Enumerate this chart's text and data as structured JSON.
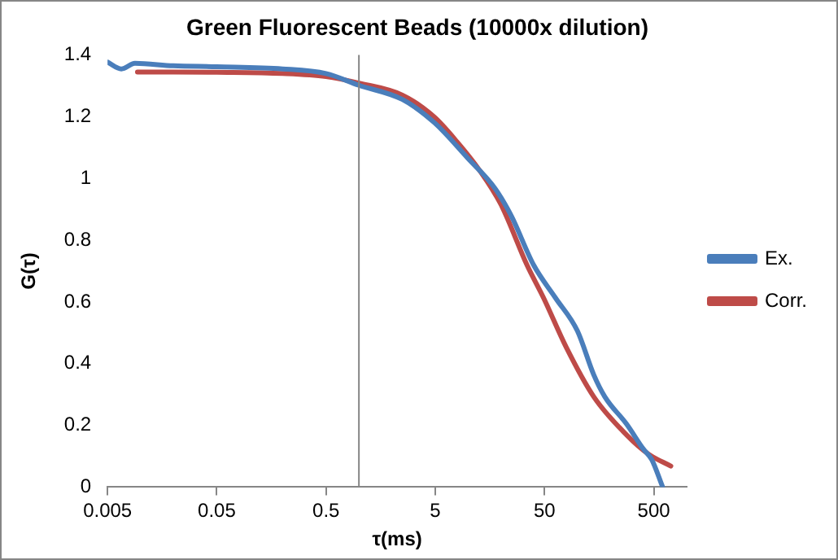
{
  "chart_data": {
    "type": "line",
    "title": "Green Fluorescent Beads (10000x dilution)",
    "xlabel": "τ(ms)",
    "ylabel": "G(τ)",
    "log": "x",
    "xlim": [
      0.005,
      1000
    ],
    "xticks": [
      0.005,
      0.05,
      0.5,
      5,
      50,
      500
    ],
    "ylim": [
      0,
      1.4
    ],
    "yticks": [
      0,
      0.2,
      0.4,
      0.6,
      0.8,
      1,
      1.2,
      1.4
    ],
    "grid": false,
    "legend": "right",
    "marker": "none",
    "line_style": "solid",
    "ref_lines": [
      {
        "axis": "x",
        "value": 1,
        "color": "#868686"
      }
    ],
    "series": [
      {
        "name": "Ex.",
        "color": "#4a7ebb",
        "x": [
          0.005,
          0.0067,
          0.0089,
          0.02,
          0.05,
          0.2,
          0.5,
          1,
          2.5,
          4.9,
          9.9,
          17.6,
          24.8,
          39.8,
          63,
          100,
          141,
          178,
          282,
          400,
          479,
          603
        ],
        "values": [
          1.377,
          1.355,
          1.373,
          1.365,
          1.362,
          1.355,
          1.34,
          1.302,
          1.256,
          1.181,
          1.066,
          0.968,
          0.879,
          0.719,
          0.613,
          0.506,
          0.364,
          0.293,
          0.204,
          0.124,
          0.089,
          0
        ]
      },
      {
        "name": "Corr.",
        "color": "#be4b48",
        "x": [
          0.0094,
          0.02,
          0.05,
          0.2,
          0.5,
          1,
          2.5,
          4.9,
          7.9,
          12.5,
          20,
          34.6,
          49,
          79,
          141,
          282,
          447,
          716
        ],
        "values": [
          1.345,
          1.345,
          1.344,
          1.34,
          1.33,
          1.309,
          1.27,
          1.199,
          1.119,
          1.03,
          0.915,
          0.719,
          0.613,
          0.453,
          0.293,
          0.169,
          0.107,
          0.068
        ]
      }
    ]
  }
}
